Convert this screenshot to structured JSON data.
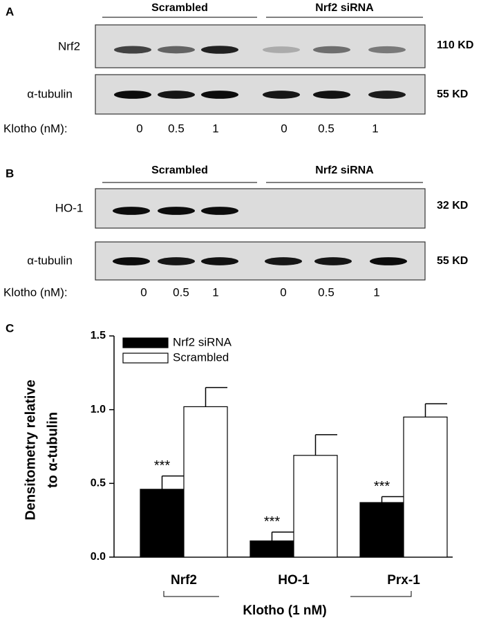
{
  "panel_a": {
    "label": "A",
    "groups": [
      "Scrambled",
      "Nrf2 siRNA"
    ],
    "blots": [
      {
        "protein": "Nrf2",
        "size": "110 KD"
      },
      {
        "protein": "α-tubulin",
        "size": "55 KD"
      }
    ],
    "lane_title": "Klotho (nM):",
    "lanes": [
      "0",
      "0.5",
      "1",
      "0",
      "0.5",
      "1"
    ]
  },
  "panel_b": {
    "label": "B",
    "groups": [
      "Scrambled",
      "Nrf2 siRNA"
    ],
    "blots": [
      {
        "protein": "HO-1",
        "size": "32 KD"
      },
      {
        "protein": "α-tubulin",
        "size": "55 KD"
      }
    ],
    "lane_title": "Klotho (nM):",
    "lanes": [
      "0",
      "0.5",
      "1",
      "0",
      "0.5",
      "1"
    ]
  },
  "chart_data": {
    "type": "bar",
    "panel_label": "C",
    "y_label": [
      "Densitometry relative",
      "to α-tubulin"
    ],
    "x_label": "Klotho (1 nM)",
    "categories": [
      "Nrf2",
      "HO-1",
      "Prx-1"
    ],
    "series": [
      {
        "name": "Nrf2 siRNA",
        "color": "#000000",
        "values": [
          0.46,
          0.11,
          0.37
        ],
        "errors": [
          0.09,
          0.06,
          0.04
        ],
        "significance": [
          "***",
          "***",
          "***"
        ]
      },
      {
        "name": "Scrambled",
        "color": "#ffffff",
        "values": [
          1.02,
          0.69,
          0.95
        ],
        "errors": [
          0.13,
          0.14,
          0.09
        ]
      }
    ],
    "ylim": [
      0,
      1.5
    ],
    "yticks": [
      {
        "value": 0,
        "label": "0.0"
      },
      0.5,
      {
        "value": 1,
        "label": "1.0"
      },
      1.5
    ],
    "legend": "upper left"
  }
}
